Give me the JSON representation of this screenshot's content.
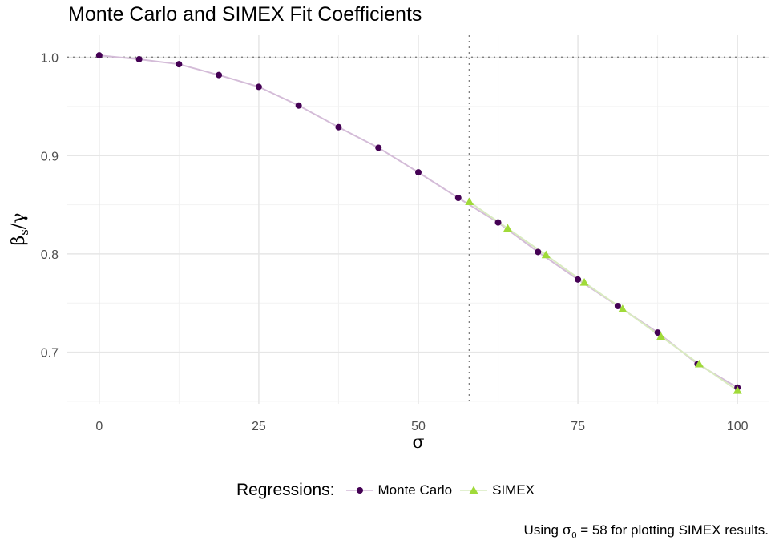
{
  "chart_data": {
    "type": "line",
    "title": "Monte Carlo and SIMEX Fit Coefficients",
    "xlabel": "σ",
    "ylabel_main": "β",
    "ylabel_sub": "s",
    "ylabel_tail": "/γ",
    "xlim": [
      -5,
      105
    ],
    "ylim": [
      0.6475,
      1.0225
    ],
    "x_ticks": [
      0,
      25,
      50,
      75,
      100
    ],
    "x_tick_labels": [
      "0",
      "25",
      "50",
      "75",
      "100"
    ],
    "y_ticks": [
      0.7,
      0.8,
      0.9,
      1.0
    ],
    "y_tick_labels": [
      "0.7",
      "0.8",
      "0.9",
      "1.0"
    ],
    "grid": true,
    "legend_position": "bottom",
    "legend_title": "Regressions:",
    "reference_lines": {
      "h": 1.0,
      "v": 58
    },
    "series": [
      {
        "name": "Monte Carlo",
        "marker": "circle",
        "color": "#440154",
        "line_color": "#d4bcd8",
        "x": [
          0,
          6.25,
          12.5,
          18.75,
          25,
          31.25,
          37.5,
          43.75,
          50,
          56.25,
          62.5,
          68.75,
          75,
          81.25,
          87.5,
          93.75,
          100
        ],
        "y": [
          1.002,
          0.998,
          0.993,
          0.982,
          0.97,
          0.951,
          0.929,
          0.908,
          0.883,
          0.857,
          0.832,
          0.802,
          0.774,
          0.747,
          0.72,
          0.688,
          0.664
        ]
      },
      {
        "name": "SIMEX",
        "marker": "triangle",
        "color": "#a0da39",
        "line_color": "#d9ebc0",
        "x": [
          58,
          64,
          70,
          76,
          82,
          88,
          94,
          100
        ],
        "y": [
          0.853,
          0.826,
          0.799,
          0.771,
          0.744,
          0.716,
          0.688,
          0.661
        ]
      }
    ]
  },
  "caption": {
    "prefix": "Using ",
    "sigma": "σ",
    "sub": "0",
    "suffix": " = 58 for plotting SIMEX results."
  }
}
